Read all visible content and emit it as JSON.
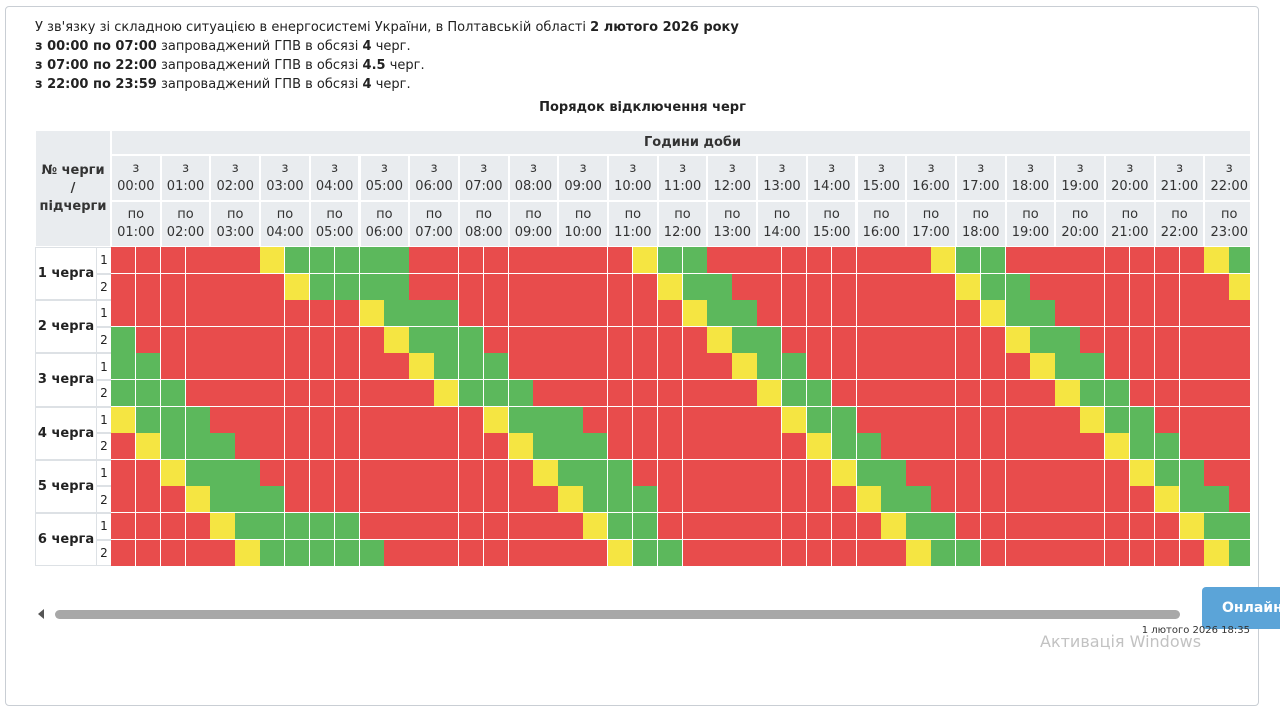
{
  "notice": {
    "lines": [
      [
        {
          "text": "У зв'язку зі складною ситуацією в енергосистемі України, в Полтавській області ",
          "bold": false
        },
        {
          "text": "2 лютого 2026 року",
          "bold": true
        }
      ],
      [
        {
          "text": "з 00:00 по 07:00",
          "bold": true
        },
        {
          "text": " запроваджений ГПВ в обсязі ",
          "bold": false
        },
        {
          "text": "4",
          "bold": true
        },
        {
          "text": " черг.",
          "bold": false
        }
      ],
      [
        {
          "text": "з 07:00 по 22:00",
          "bold": true
        },
        {
          "text": " запроваджений ГПВ в обсязі ",
          "bold": false
        },
        {
          "text": "4.5",
          "bold": true
        },
        {
          "text": " черг.",
          "bold": false
        }
      ],
      [
        {
          "text": "з 22:00 по 23:59",
          "bold": true
        },
        {
          "text": " запроваджений ГПВ в обсязі ",
          "bold": false
        },
        {
          "text": "4",
          "bold": true
        },
        {
          "text": " черг.",
          "bold": false
        }
      ]
    ]
  },
  "table": {
    "title": "Порядок відключення черг",
    "hours_header": "Години доби",
    "queue_header": [
      "№ черги",
      "/",
      "підчерги"
    ],
    "from_word": "з",
    "to_word": "по",
    "columns": [
      {
        "start": "00:00",
        "end": "01:00"
      },
      {
        "start": "01:00",
        "end": "02:00"
      },
      {
        "start": "02:00",
        "end": "03:00"
      },
      {
        "start": "03:00",
        "end": "04:00"
      },
      {
        "start": "04:00",
        "end": "05:00"
      },
      {
        "start": "05:00",
        "end": "06:00"
      },
      {
        "start": "06:00",
        "end": "07:00"
      },
      {
        "start": "07:00",
        "end": "08:00"
      },
      {
        "start": "08:00",
        "end": "09:00"
      },
      {
        "start": "09:00",
        "end": "10:00"
      },
      {
        "start": "10:00",
        "end": "11:00"
      },
      {
        "start": "11:00",
        "end": "12:00"
      },
      {
        "start": "12:00",
        "end": "13:00"
      },
      {
        "start": "13:00",
        "end": "14:00"
      },
      {
        "start": "14:00",
        "end": "15:00"
      },
      {
        "start": "15:00",
        "end": "16:00"
      },
      {
        "start": "16:00",
        "end": "17:00"
      },
      {
        "start": "17:00",
        "end": "18:00"
      },
      {
        "start": "18:00",
        "end": "19:00"
      },
      {
        "start": "19:00",
        "end": "20:00"
      },
      {
        "start": "20:00",
        "end": "21:00"
      },
      {
        "start": "21:00",
        "end": "22:00"
      },
      {
        "start": "22:00",
        "end": "23:00"
      }
    ],
    "palette": {
      "r": "#e84c4c",
      "g": "#5cb85c",
      "y": "#f5e542"
    },
    "queues": [
      {
        "name": "1 черга",
        "subqueues": [
          {
            "label": "1",
            "cells": "rrrrrrygggggrrrrrrrrryggrrrrrrrrryggrrrrrrrryg"
          },
          {
            "label": "2",
            "cells": "rrrrrrryggggrrrrrrrrrryggrrrrrrrrryggrrrrrrrry"
          }
        ]
      },
      {
        "name": "2 черга",
        "subqueues": [
          {
            "label": "1",
            "cells": "rrrrrrrrrrygggrrrrrrrrryggrrrrrrrrryggrrrrrrrr"
          },
          {
            "label": "2",
            "cells": "grrrrrrrrrrygggrrrrrrrrryggrrrrrrrrryggrrrrrrr"
          }
        ]
      },
      {
        "name": "3 черга",
        "subqueues": [
          {
            "label": "1",
            "cells": "ggrrrrrrrrrrygggrrrrrrrrryggrrrrrrrrryggrrrrrr"
          },
          {
            "label": "2",
            "cells": "gggrrrrrrrrrrygggrrrrrrrrryggrrrrrrrrryggrrrrr"
          }
        ]
      },
      {
        "name": "4 черга",
        "subqueues": [
          {
            "label": "1",
            "cells": "ygggrrrrrrrrrrrygggrrrrrrrryggrrrrrrrrryggrrrr"
          },
          {
            "label": "2",
            "cells": "rygggrrrrrrrrrrrygggrrrrrrrryggrrrrrrrrryggrrr"
          }
        ]
      },
      {
        "name": "5 черга",
        "subqueues": [
          {
            "label": "1",
            "cells": "rrygggrrrrrrrrrrrygggrrrrrrrryggrrrrrrrrryggrr"
          },
          {
            "label": "2",
            "cells": "rrrygggrrrrrrrrrrrygggrrrrrrrryggrrrrrrrrryggr"
          }
        ]
      },
      {
        "name": "6 черга",
        "subqueues": [
          {
            "label": "1",
            "cells": "rrrrygggggrrrrrrrrryggrrrrrrrrryggrrrrrrrrrygg"
          },
          {
            "label": "2",
            "cells": "rrrrrygggggrrrrrrrrryggrrrrrrrrryggrrrrrrrrryg"
          }
        ]
      }
    ]
  },
  "footer": {
    "button": "Онлайн",
    "timestamp": "1 лютого 2026 18:35",
    "watermark": "Активація Windows"
  }
}
